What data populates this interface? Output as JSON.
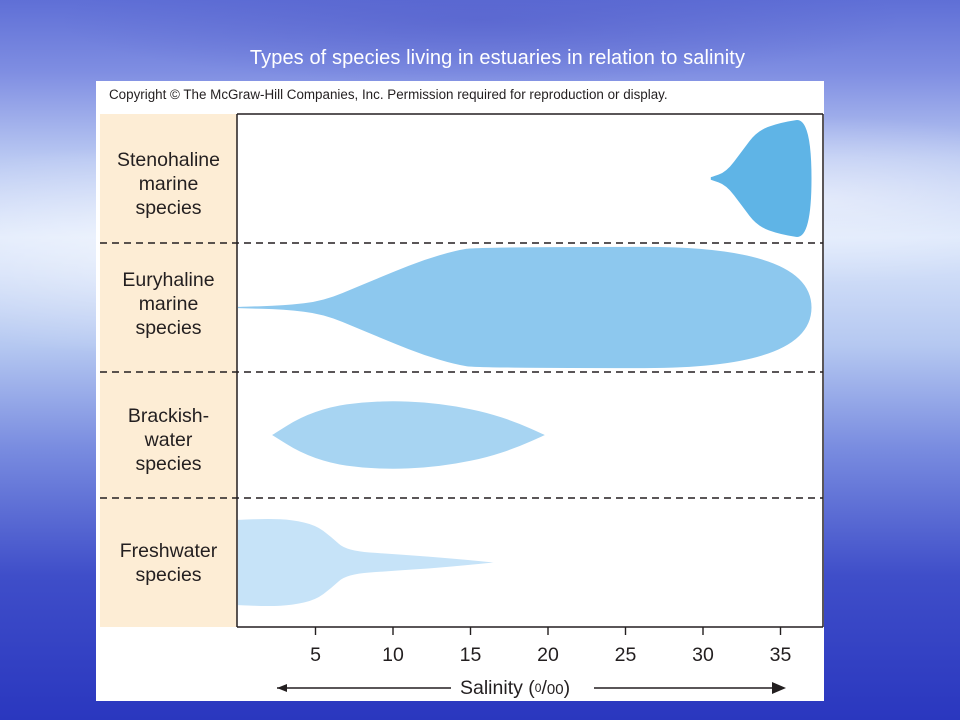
{
  "slide": {
    "title": "Types of species living in estuaries in relation to salinity"
  },
  "figure": {
    "copyright": "Copyright © The McGraw-Hill Companies, Inc. Permission required for reproduction or display."
  },
  "chart_data": {
    "type": "area",
    "xlabel": "Salinity",
    "xunit": {
      "paren_open": "(",
      "sup": "0",
      "slash": "/",
      "sub": "00",
      "paren_close": ")"
    },
    "xlim": [
      0,
      37
    ],
    "xticks": [
      5,
      10,
      15,
      20,
      25,
      30,
      35
    ],
    "tick_labels": [
      "5",
      "10",
      "15",
      "20",
      "25",
      "30",
      "35"
    ],
    "rows": [
      {
        "label_lines": [
          "Stenohaline",
          "marine",
          "species"
        ],
        "color": "#5fb4e6",
        "shape": [
          [
            30.5,
            0.02
          ],
          [
            31.5,
            0.1
          ],
          [
            32.5,
            0.42
          ],
          [
            33.5,
            0.74
          ],
          [
            35,
            0.87
          ],
          [
            37,
            0.94
          ]
        ]
      },
      {
        "label_lines": [
          "Euryhaline",
          "marine",
          "species"
        ],
        "color": "#8dc8ee",
        "shape": [
          [
            0,
            0.01
          ],
          [
            3,
            0.03
          ],
          [
            5.5,
            0.1
          ],
          [
            8,
            0.35
          ],
          [
            10,
            0.55
          ],
          [
            12,
            0.74
          ],
          [
            14,
            0.88
          ],
          [
            15.5,
            0.94
          ],
          [
            37,
            0.94
          ]
        ]
      },
      {
        "label_lines": [
          "Brackish-",
          "water",
          "species"
        ],
        "color": "#a7d4f2",
        "shape": [
          [
            2.2,
            0.0
          ],
          [
            4,
            0.28
          ],
          [
            6,
            0.45
          ],
          [
            8,
            0.52
          ],
          [
            10,
            0.54
          ],
          [
            12,
            0.52
          ],
          [
            14,
            0.46
          ],
          [
            16,
            0.36
          ],
          [
            18,
            0.2
          ],
          [
            19.8,
            0.0
          ]
        ]
      },
      {
        "label_lines": [
          "Freshwater",
          "species"
        ],
        "color": "#c6e3f8",
        "shape": [
          [
            0,
            0.66
          ],
          [
            2,
            0.68
          ],
          [
            3.5,
            0.66
          ],
          [
            5,
            0.58
          ],
          [
            6,
            0.4
          ],
          [
            7,
            0.18
          ],
          [
            10,
            0.13
          ],
          [
            13,
            0.08
          ],
          [
            16.5,
            0.0
          ]
        ]
      }
    ],
    "grid": false,
    "legend": "none"
  },
  "colors": {
    "label_panel": "#fdedd5",
    "axis": "#231f20",
    "divider": "#231f20"
  }
}
